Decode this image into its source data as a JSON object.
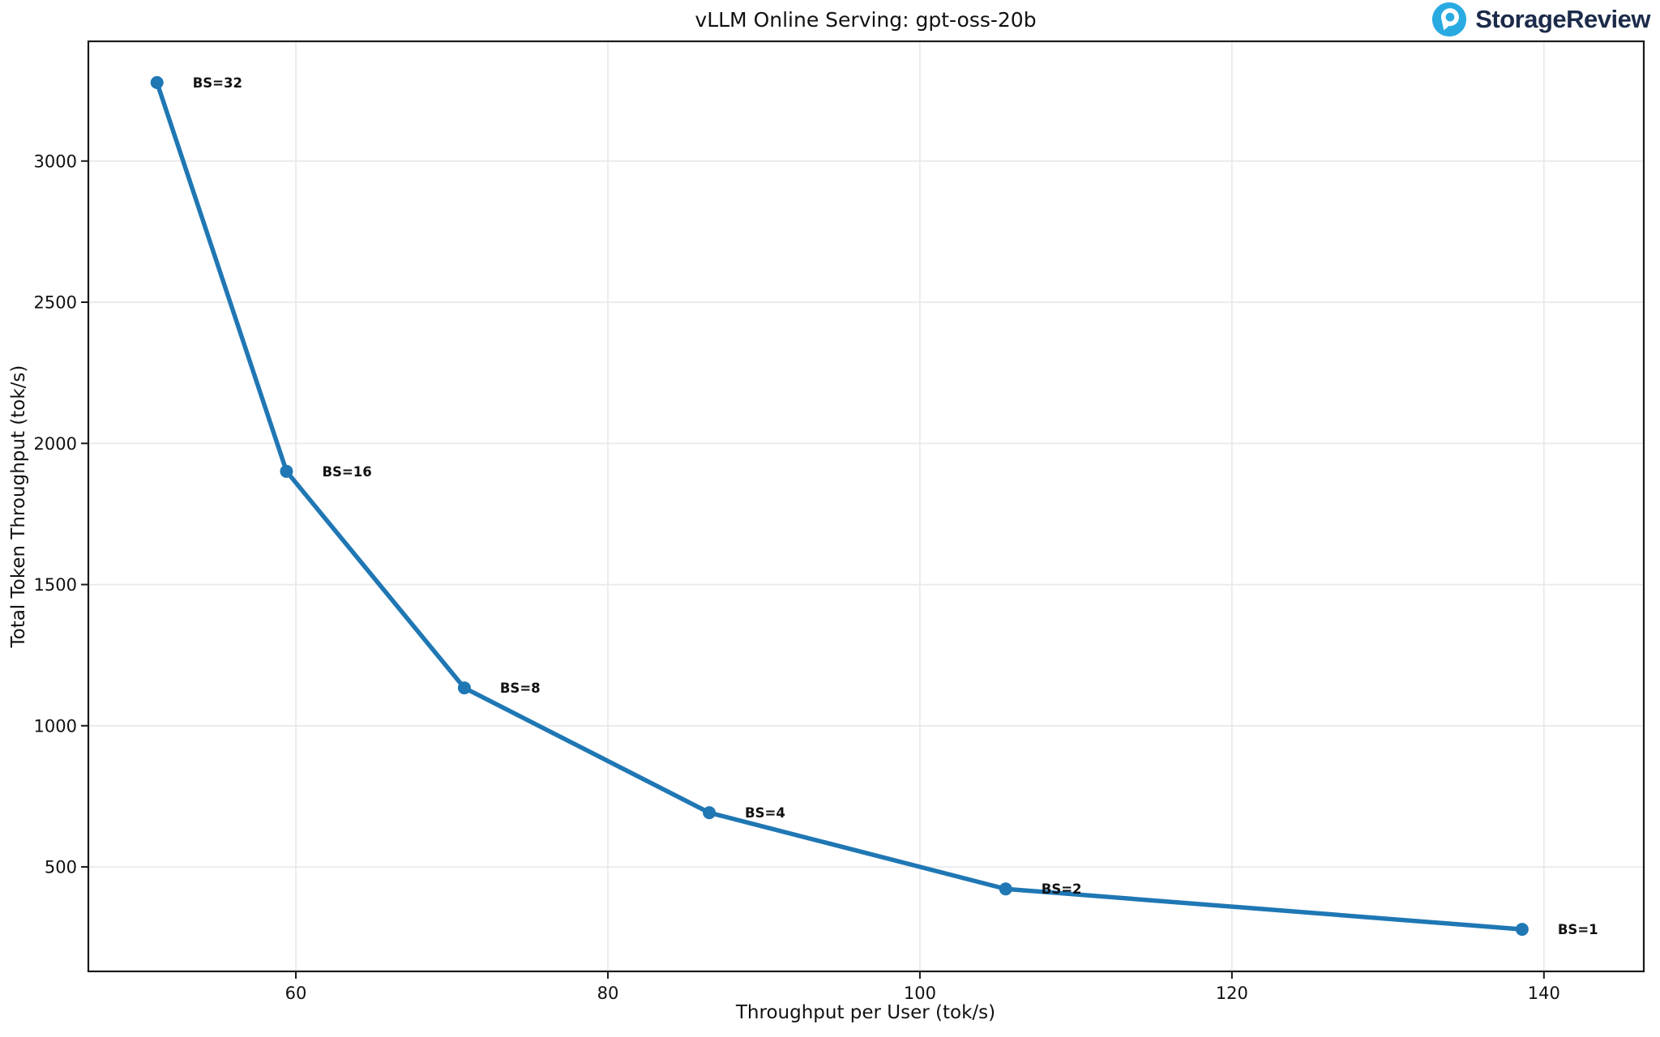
{
  "header": {
    "logo": {
      "brand": "StorageReview",
      "icon": "storagereview-circle-pin-icon",
      "icon_color": "#29ABE2",
      "text_color": "#1C2B4A"
    }
  },
  "chart_data": {
    "type": "line",
    "title": "vLLM Online Serving: gpt-oss-20b",
    "xlabel": "Throughput per User (tok/s)",
    "ylabel": "Total Token Throughput (tok/s)",
    "xlim": [
      46.7,
      146.4
    ],
    "ylim": [
      130,
      3424
    ],
    "x_ticks": [
      60,
      80,
      100,
      120,
      140
    ],
    "y_ticks": [
      500,
      1000,
      1500,
      2000,
      2500,
      3000
    ],
    "grid": true,
    "legend": "none",
    "line_color": "#1F77B4",
    "grid_color": "#E8E8E8",
    "spine_color": "#1A1A1A",
    "series": [
      {
        "name": "gpt-oss-20b",
        "points": [
          {
            "label": "BS=32",
            "x": 51.1,
            "y": 3278
          },
          {
            "label": "BS=16",
            "x": 59.4,
            "y": 1901
          },
          {
            "label": "BS=8",
            "x": 70.8,
            "y": 1134
          },
          {
            "label": "BS=4",
            "x": 86.5,
            "y": 692
          },
          {
            "label": "BS=2",
            "x": 105.5,
            "y": 422
          },
          {
            "label": "BS=1",
            "x": 138.6,
            "y": 279
          }
        ]
      }
    ]
  }
}
